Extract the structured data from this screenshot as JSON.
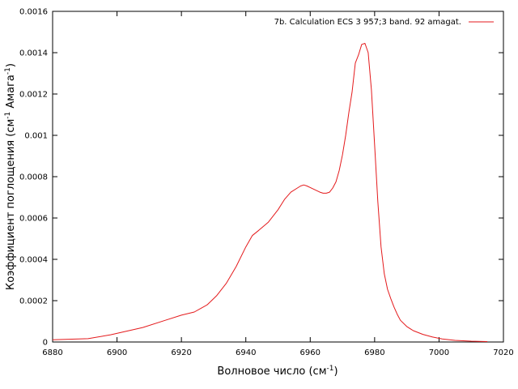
{
  "chart_data": {
    "type": "line",
    "title": "",
    "xlabel": "Волновое число (см",
    "xlabel_sup": "-1",
    "xlabel_end": ")",
    "ylabel": "Коэффициент поглощения (см",
    "ylabel_sup1": "-1",
    "ylabel_mid": " Амага",
    "ylabel_sup2": "-1",
    "ylabel_end": ")",
    "xlim": [
      6880,
      7020
    ],
    "ylim": [
      0,
      0.0016
    ],
    "xticks": [
      6880,
      6900,
      6920,
      6940,
      6960,
      6980,
      7000,
      7020
    ],
    "xtick_labels": [
      "6880",
      "6900",
      "6920",
      "6940",
      "6960",
      "6980",
      "7000",
      "7020"
    ],
    "yticks": [
      0,
      0.0002,
      0.0004,
      0.0006,
      0.0008,
      0.001,
      0.0012,
      0.0014,
      0.0016
    ],
    "ytick_labels": [
      "0",
      "0.0002",
      "0.0004",
      "0.0006",
      "0.0008",
      "0.001",
      "0.0012",
      "0.0014",
      "0.0016"
    ],
    "grid": false,
    "legend_position": "top-right",
    "series": [
      {
        "name": "7b. Calculation ECS 3  957;3 band. 92 amagat.",
        "color": "#e41a1c",
        "x": [
          6880,
          6891,
          6898,
          6908,
          6915,
          6920,
          6924,
          6928,
          6931,
          6934,
          6937,
          6940,
          6942,
          6944,
          6947,
          6950,
          6952,
          6954,
          6956,
          6957,
          6958,
          6959,
          6961,
          6963,
          6964,
          6965,
          6966,
          6967,
          6968,
          6969,
          6970,
          6971,
          6972,
          6973,
          6974,
          6975,
          6976,
          6977,
          6978,
          6979,
          6980,
          6981,
          6982,
          6983,
          6984,
          6985,
          6986,
          6987,
          6988,
          6990,
          6992,
          6995,
          6998,
          7001,
          7005,
          7010,
          7015
        ],
        "y": [
          1.1e-05,
          1.6e-05,
          3.5e-05,
          7e-05,
          0.000105,
          0.00013,
          0.000145,
          0.00018,
          0.000225,
          0.000285,
          0.000365,
          0.00046,
          0.000515,
          0.00054,
          0.00058,
          0.00064,
          0.00069,
          0.000725,
          0.000745,
          0.000755,
          0.00076,
          0.000755,
          0.00074,
          0.000725,
          0.00072,
          0.00072,
          0.000725,
          0.000745,
          0.000775,
          0.00083,
          0.000905,
          0.001,
          0.00111,
          0.00121,
          0.00135,
          0.00139,
          0.00144,
          0.001445,
          0.0014,
          0.00122,
          0.00095,
          0.00068,
          0.00046,
          0.00033,
          0.000255,
          0.00021,
          0.00017,
          0.000135,
          0.000105,
          7.5e-05,
          5.5e-05,
          3.7e-05,
          2.4e-05,
          1.5e-05,
          8e-06,
          4e-06,
          2e-06
        ]
      }
    ]
  }
}
